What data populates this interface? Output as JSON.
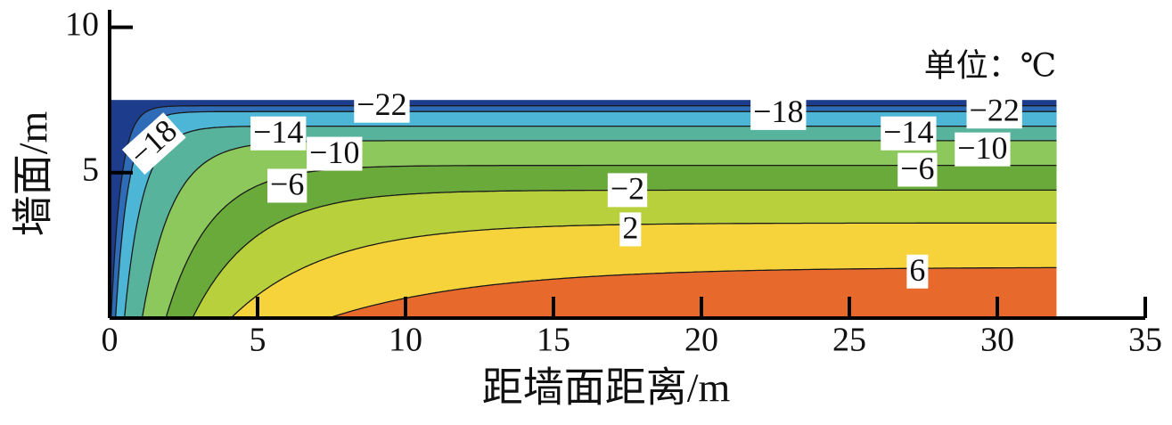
{
  "chart_data": {
    "type": "contour",
    "x_label": "距墙面距离/m",
    "y_label": "墙面/m",
    "unit_label": "单位：℃",
    "xlim": [
      0,
      35
    ],
    "ylim": [
      0,
      10.6
    ],
    "xticks": [
      0,
      5,
      10,
      15,
      20,
      25,
      30,
      35
    ],
    "yticks": [
      5,
      10
    ],
    "region": {
      "x": [
        0,
        32
      ],
      "y": [
        0,
        7.5
      ]
    },
    "colors": [
      "#1d3d8c",
      "#2f6cb8",
      "#4db6d6",
      "#58b39d",
      "#8dc85c",
      "#6aaa3a",
      "#b7d03c",
      "#f6d33b",
      "#e8692c"
    ],
    "contours": [
      {
        "level": -22,
        "label": "−22",
        "y_far": 7.3,
        "x_wall": 0.05
      },
      {
        "level": -18,
        "label": "−18",
        "y_far": 7.1,
        "x_wall": 0.2
      },
      {
        "level": -14,
        "label": "−14",
        "y_far": 6.6,
        "x_wall": 0.5
      },
      {
        "level": -10,
        "label": "−10",
        "y_far": 6.1,
        "x_wall": 1.1
      },
      {
        "level": -6,
        "label": "−6",
        "y_far": 5.25,
        "x_wall": 1.9
      },
      {
        "level": -2,
        "label": "−2",
        "y_far": 4.4,
        "x_wall": 2.8
      },
      {
        "level": 2,
        "label": "2",
        "y_far": 3.27,
        "x_wall": 4.1
      },
      {
        "level": 6,
        "label": "6",
        "y_far": 1.75,
        "x_wall": 7.4
      }
    ]
  }
}
